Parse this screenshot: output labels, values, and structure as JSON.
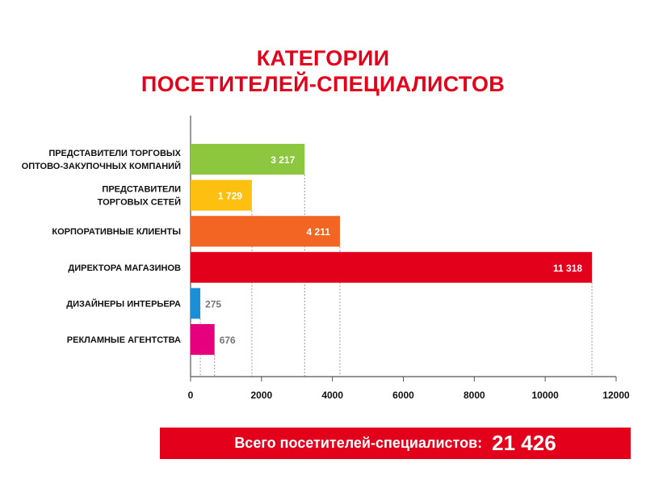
{
  "title": {
    "line1": "КАТЕГОРИИ",
    "line2": "ПОСЕТИТЕЛЕЙ-СПЕЦИАЛИСТОВ"
  },
  "chart_data": {
    "type": "bar",
    "orientation": "horizontal",
    "categories": [
      [
        "ПРЕДСТАВИТЕЛИ ТОРГОВЫХ",
        "ОПТОВО-ЗАКУПОЧНЫХ КОМПАНИЙ"
      ],
      [
        "ПРЕДСТАВИТЕЛИ",
        "ТОРГОВЫХ СЕТЕЙ"
      ],
      [
        "КОРПОРАТИВНЫЕ КЛИЕНТЫ"
      ],
      [
        "ДИРЕКТОРА МАГАЗИНОВ"
      ],
      [
        "ДИЗАЙНЕРЫ ИНТЕРЬЕРА"
      ],
      [
        "РЕКЛАМНЫЕ АГЕНТСТВА"
      ]
    ],
    "values": [
      3217,
      1729,
      4211,
      11318,
      275,
      676
    ],
    "value_labels": [
      "3 217",
      "1 729",
      "4 211",
      "11 318",
      "275",
      "676"
    ],
    "colors": [
      "#8dc63f",
      "#fdc010",
      "#f26522",
      "#e3001b",
      "#1b8fd6",
      "#e6007e"
    ],
    "label_inside": [
      true,
      true,
      true,
      true,
      false,
      false
    ],
    "xlim": [
      0,
      12000
    ],
    "xticks": [
      0,
      2000,
      4000,
      6000,
      8000,
      10000,
      12000
    ],
    "xtick_labels": [
      "0",
      "2000",
      "4000",
      "6000",
      "8000",
      "10000",
      "12000"
    ],
    "grid": false,
    "dashed_reference_lines": true
  },
  "total": {
    "label": "Всего посетителей-специалистов:",
    "value": "21 426"
  }
}
